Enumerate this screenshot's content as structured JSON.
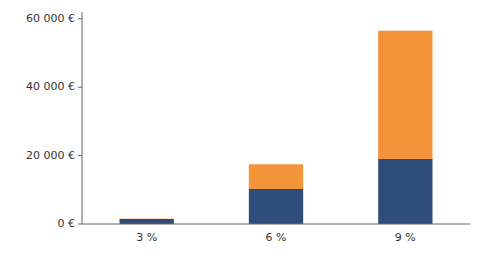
{
  "chart_data": {
    "type": "bar",
    "stacked": true,
    "categories": [
      "3 %",
      "6 %",
      "9 %"
    ],
    "series": [
      {
        "color": "#2E4D7B",
        "values": [
          1463,
          10244,
          19024
        ]
      },
      {
        "color": "#F4943A",
        "values": [
          101,
          7222,
          37503
        ]
      }
    ],
    "ylim": [
      0,
      62000
    ],
    "yticks": [
      {
        "value": 0,
        "label": "0 €"
      },
      {
        "value": 20000,
        "label": "20 000 €"
      },
      {
        "value": 40000,
        "label": "40 000 €"
      },
      {
        "value": 60000,
        "label": "60 000 €"
      }
    ],
    "grid": false
  }
}
